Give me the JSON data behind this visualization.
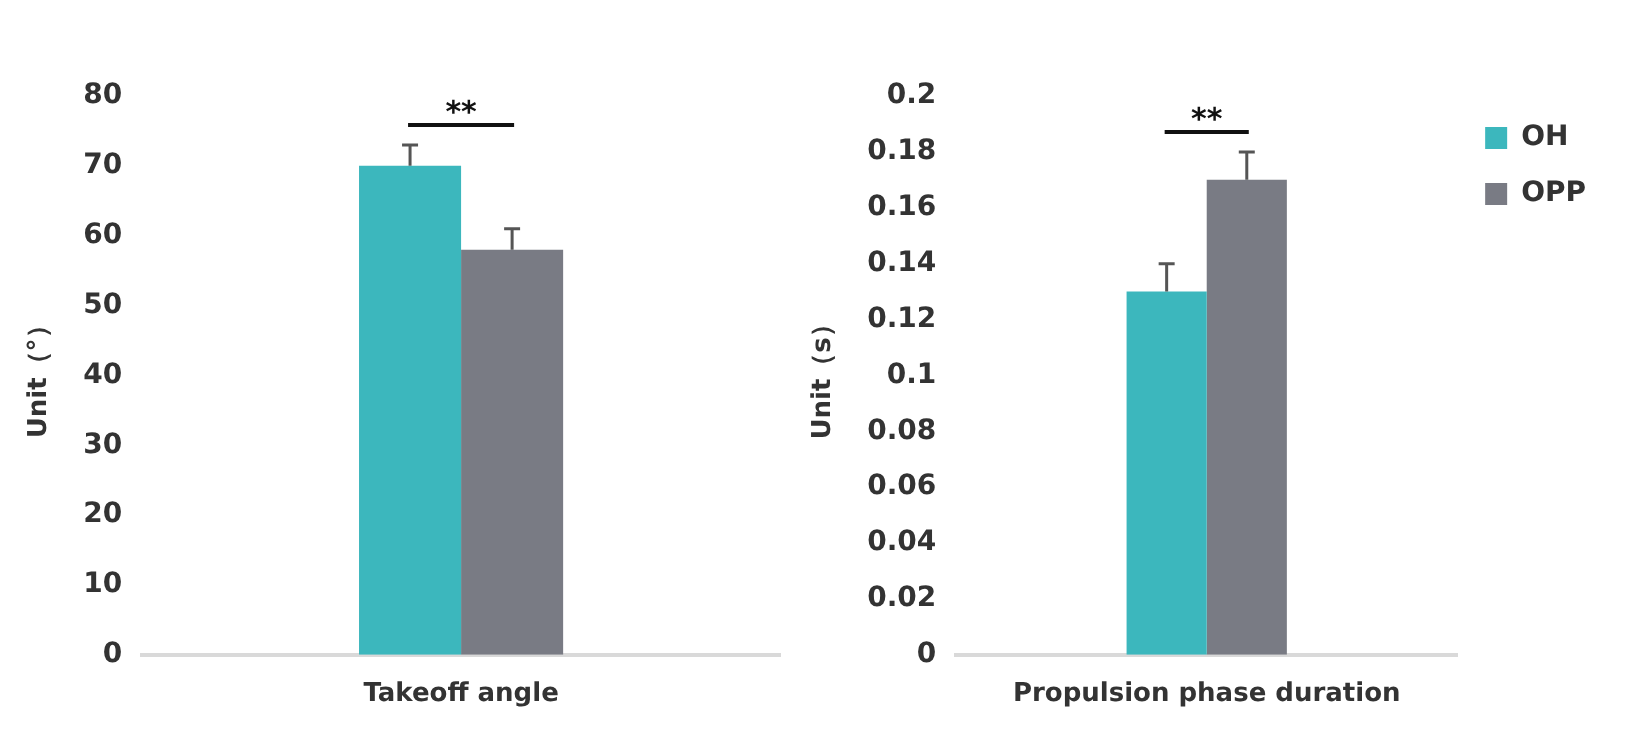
{
  "chart_data": [
    {
      "type": "bar",
      "categories": [
        "Takeoff angle"
      ],
      "ylabel": "Unit（°）",
      "ylim": [
        0,
        80
      ],
      "yticks": [
        0,
        10,
        20,
        30,
        40,
        50,
        60,
        70,
        80
      ],
      "grid": false,
      "legend": false,
      "series": [
        {
          "color": "#3cb7bd",
          "values": [
            70
          ],
          "errors": [
            [
              70,
              73
            ]
          ]
        },
        {
          "color": "#797b84",
          "values": [
            58
          ],
          "errors": [
            [
              58,
              61
            ]
          ]
        }
      ],
      "annotations": [
        "**"
      ]
    },
    {
      "type": "bar",
      "categories": [
        "Propulsion phase duration"
      ],
      "ylabel": "Unit（s）",
      "ylim": [
        0,
        0.2
      ],
      "yticks": [
        0,
        0.02,
        0.04,
        0.06,
        0.08,
        0.1,
        0.12,
        0.14,
        0.16,
        0.18,
        0.2
      ],
      "grid": false,
      "legend": "top right",
      "series": [
        {
          "name": "OH",
          "color": "#3cb7bd",
          "values": [
            0.13
          ],
          "errors": [
            [
              0.13,
              0.14
            ]
          ]
        },
        {
          "name": "OPP",
          "color": "#797b84",
          "values": [
            0.17
          ],
          "errors": [
            [
              0.17,
              0.18
            ]
          ]
        }
      ],
      "annotations": [
        "**"
      ]
    }
  ]
}
